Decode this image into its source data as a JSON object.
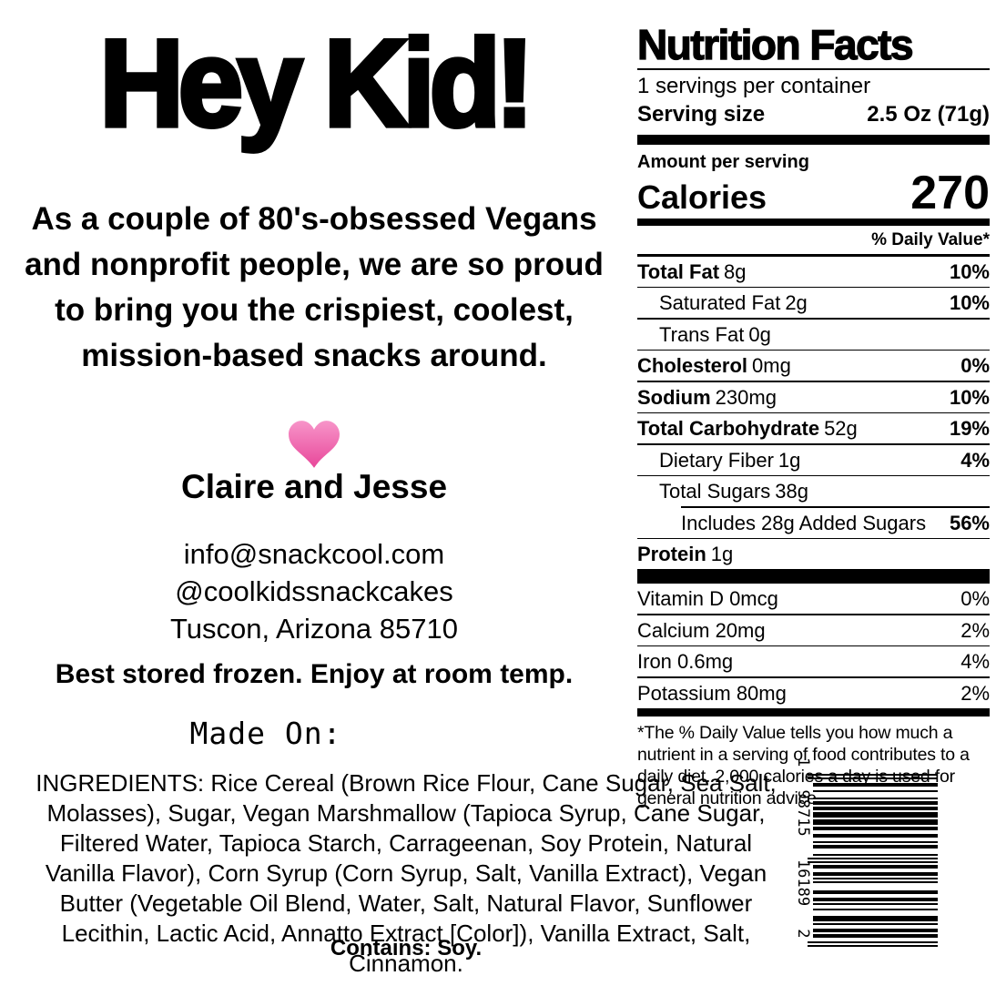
{
  "brand": {
    "title": "Hey Kid!",
    "intro": "As a couple of 80's-obsessed Vegans and nonprofit people, we are so proud to bring you the crispiest, coolest, mission-based snacks around.",
    "signature": "Claire and Jesse",
    "heart_color_top": "#f795c9",
    "heart_color_bottom": "#e8479a",
    "contact": [
      "info@snackcool.com",
      "@coolkidssnackcakes",
      "Tuscon, Arizona 85710"
    ],
    "storage": "Best stored frozen. Enjoy at room temp.",
    "made_on": "Made On:"
  },
  "nutrition": {
    "title": "Nutrition Facts",
    "servings": "1 servings per container",
    "serving_size_label": "Serving size",
    "serving_size_value": "2.5 Oz (71g)",
    "amount_label": "Amount per serving",
    "calories_label": "Calories",
    "calories_value": "270",
    "dv_header": "% Daily Value*",
    "rows": [
      {
        "label": "Total Fat",
        "amount": "8g",
        "dv": "10%"
      },
      {
        "label": "Saturated Fat",
        "amount": "2g",
        "dv": "10%"
      },
      {
        "label": "Trans Fat",
        "amount": "0g",
        "dv": ""
      },
      {
        "label": "Cholesterol",
        "amount": "0mg",
        "dv": "0%"
      },
      {
        "label": "Sodium",
        "amount": "230mg",
        "dv": "10%"
      },
      {
        "label": "Total Carbohydrate",
        "amount": "52g",
        "dv": "19%"
      },
      {
        "label": "Dietary Fiber",
        "amount": "1g",
        "dv": "4%"
      },
      {
        "label": "Total Sugars",
        "amount": "38g",
        "dv": ""
      },
      {
        "label": "Includes 28g Added Sugars",
        "amount": "",
        "dv": "56%"
      },
      {
        "label": "Protein",
        "amount": "1g",
        "dv": ""
      }
    ],
    "vitamins": [
      {
        "label": "Vitamin D 0mcg",
        "dv": "0%"
      },
      {
        "label": "Calcium 20mg",
        "dv": "2%"
      },
      {
        "label": "Iron 0.6mg",
        "dv": "4%"
      },
      {
        "label": "Potassium 80mg",
        "dv": "2%"
      }
    ],
    "footnote": "*The % Daily Value tells you how much a nutrient in a serving of food contributes to a daily diet. 2,000 calories a day is used for general nutrition advice."
  },
  "ingredients": {
    "text": "INGREDIENTS: Rice Cereal (Brown Rice Flour, Cane Sugar, Sea Salt, Molasses), Sugar, Vegan Marshmallow (Tapioca Syrup, Cane Sugar, Filtered Water, Tapioca Starch, Carrageenan, Soy Protein, Natural Vanilla Flavor), Corn Syrup (Corn Syrup, Salt, Vanilla Extract), Vegan Butter (Vegetable Oil Blend, Water, Salt, Natural Flavor, Sunflower Lecithin, Lactic Acid, Annatto Extract [Color]), Vanilla Extract, Salt, Cinnamon.",
    "contains": "Contains: Soy."
  },
  "barcode": {
    "digits": "198715161892",
    "display_text": "1 98715 16189 2"
  }
}
